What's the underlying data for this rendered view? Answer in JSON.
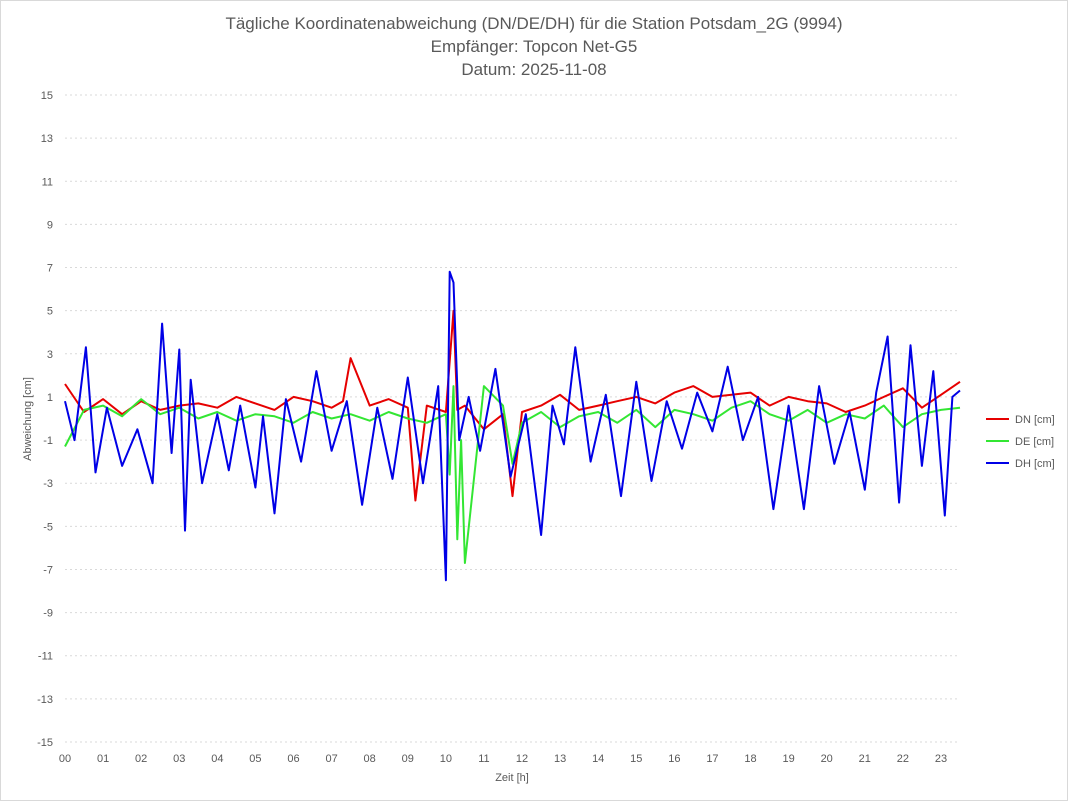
{
  "chart_data": {
    "type": "line",
    "title": [
      "Tägliche Koordinatenabweichung (DN/DE/DH) für die Station Potsdam_2G (9994)",
      "Empfänger: Topcon Net-G5",
      "Datum: 2025-11-08"
    ],
    "xlabel": "Zeit [h]",
    "ylabel": "Abweichung [cm]",
    "xlim": [
      0,
      23.5
    ],
    "ylim": [
      -15,
      15
    ],
    "x_ticks": [
      0,
      1,
      2,
      3,
      4,
      5,
      6,
      7,
      8,
      9,
      10,
      11,
      12,
      13,
      14,
      15,
      16,
      17,
      18,
      19,
      20,
      21,
      22,
      23
    ],
    "x_tick_labels": [
      "00",
      "01",
      "02",
      "03",
      "04",
      "05",
      "06",
      "07",
      "08",
      "09",
      "10",
      "11",
      "12",
      "13",
      "14",
      "15",
      "16",
      "17",
      "18",
      "19",
      "20",
      "21",
      "22",
      "23"
    ],
    "y_ticks": [
      15,
      13,
      11,
      9,
      7,
      5,
      3,
      1,
      -1,
      -3,
      -5,
      -7,
      -9,
      -11,
      -13,
      -15
    ],
    "y_tick_labels": [
      "15",
      "13",
      "11",
      "9",
      "7",
      "5",
      "3",
      "1",
      "-1",
      "-3",
      "-5",
      "-7",
      "-9",
      "-11",
      "-13",
      "-15"
    ],
    "grid": true,
    "legend_position": "right",
    "series": [
      {
        "name": "DN [cm]",
        "color": "#e60000",
        "x": [
          0,
          0.5,
          1,
          1.5,
          2,
          2.5,
          3,
          3.5,
          4,
          4.5,
          5,
          5.5,
          6,
          6.5,
          7,
          7.3,
          7.5,
          8,
          8.5,
          9,
          9.2,
          9.5,
          10,
          10.2,
          10.3,
          10.5,
          11,
          11.5,
          11.75,
          12,
          12.5,
          13,
          13.5,
          14,
          14.5,
          15,
          15.5,
          16,
          16.5,
          17,
          17.5,
          18,
          18.5,
          19,
          19.5,
          20,
          20.5,
          21,
          21.5,
          22,
          22.5,
          23,
          23.5
        ],
        "values": [
          1.6,
          0.3,
          0.9,
          0.2,
          0.8,
          0.4,
          0.6,
          0.7,
          0.5,
          1.0,
          0.7,
          0.4,
          1.0,
          0.8,
          0.5,
          0.8,
          2.8,
          0.6,
          0.9,
          0.5,
          -3.8,
          0.6,
          0.3,
          5.0,
          0.4,
          0.6,
          -0.5,
          0.2,
          -3.6,
          0.3,
          0.6,
          1.1,
          0.4,
          0.6,
          0.8,
          1.0,
          0.7,
          1.2,
          1.5,
          1.0,
          1.1,
          1.2,
          0.6,
          1.0,
          0.8,
          0.7,
          0.3,
          0.6,
          1.0,
          1.4,
          0.5,
          1.1,
          1.7
        ]
      },
      {
        "name": "DE [cm]",
        "color": "#33e633",
        "x": [
          0,
          0.5,
          1,
          1.5,
          2,
          2.5,
          3,
          3.5,
          4,
          4.5,
          5,
          5.5,
          6,
          6.5,
          7,
          7.5,
          8,
          8.5,
          9,
          9.5,
          10,
          10.1,
          10.2,
          10.3,
          10.4,
          10.5,
          11,
          11.5,
          11.75,
          12,
          12.5,
          13,
          13.5,
          14,
          14.5,
          15,
          15.5,
          16,
          16.5,
          17,
          17.5,
          18,
          18.5,
          19,
          19.5,
          20,
          20.5,
          21,
          21.5,
          22,
          22.5,
          23,
          23.5
        ],
        "values": [
          -1.3,
          0.4,
          0.6,
          0.1,
          0.9,
          0.2,
          0.5,
          0.0,
          0.3,
          -0.1,
          0.2,
          0.1,
          -0.2,
          0.3,
          0.0,
          0.2,
          -0.1,
          0.3,
          0.0,
          -0.2,
          0.2,
          -2.6,
          1.5,
          -5.6,
          -1.0,
          -6.7,
          1.5,
          0.6,
          -2.1,
          -0.2,
          0.3,
          -0.4,
          0.1,
          0.3,
          -0.2,
          0.4,
          -0.4,
          0.4,
          0.2,
          -0.1,
          0.5,
          0.8,
          0.2,
          -0.1,
          0.4,
          -0.2,
          0.2,
          0.0,
          0.6,
          -0.4,
          0.2,
          0.4,
          0.5
        ]
      },
      {
        "name": "DH [cm]",
        "color": "#0000e6",
        "x": [
          0,
          0.25,
          0.55,
          0.8,
          1.1,
          1.5,
          1.9,
          2.3,
          2.55,
          2.8,
          3.0,
          3.15,
          3.3,
          3.6,
          4.0,
          4.3,
          4.6,
          5.0,
          5.2,
          5.5,
          5.8,
          6.2,
          6.6,
          7.0,
          7.4,
          7.8,
          8.2,
          8.6,
          9.0,
          9.4,
          9.8,
          10.0,
          10.1,
          10.2,
          10.35,
          10.6,
          10.9,
          11.3,
          11.7,
          12.1,
          12.5,
          12.8,
          13.1,
          13.4,
          13.8,
          14.2,
          14.6,
          15.0,
          15.4,
          15.8,
          16.2,
          16.6,
          17.0,
          17.4,
          17.8,
          18.2,
          18.6,
          19.0,
          19.4,
          19.8,
          20.2,
          20.6,
          21.0,
          21.3,
          21.6,
          21.9,
          22.2,
          22.5,
          22.8,
          23.1,
          23.3,
          23.5
        ],
        "values": [
          0.8,
          -1.0,
          3.3,
          -2.5,
          0.5,
          -2.2,
          -0.5,
          -3.0,
          4.4,
          -1.6,
          3.2,
          -5.2,
          1.8,
          -3.0,
          0.2,
          -2.4,
          0.6,
          -3.2,
          0.1,
          -4.4,
          0.9,
          -2.0,
          2.2,
          -1.5,
          0.8,
          -4.0,
          0.5,
          -2.8,
          1.9,
          -3.0,
          1.5,
          -7.5,
          6.8,
          6.3,
          -1.0,
          1.0,
          -1.5,
          2.3,
          -2.7,
          0.2,
          -5.4,
          0.6,
          -1.2,
          3.3,
          -2.0,
          1.1,
          -3.6,
          1.7,
          -2.9,
          0.8,
          -1.4,
          1.2,
          -0.6,
          2.4,
          -1.0,
          1.0,
          -4.2,
          0.6,
          -4.2,
          1.5,
          -2.1,
          0.3,
          -3.3,
          1.2,
          3.8,
          -3.9,
          3.4,
          -2.2,
          2.2,
          -4.5,
          1.0,
          1.3
        ]
      }
    ]
  }
}
